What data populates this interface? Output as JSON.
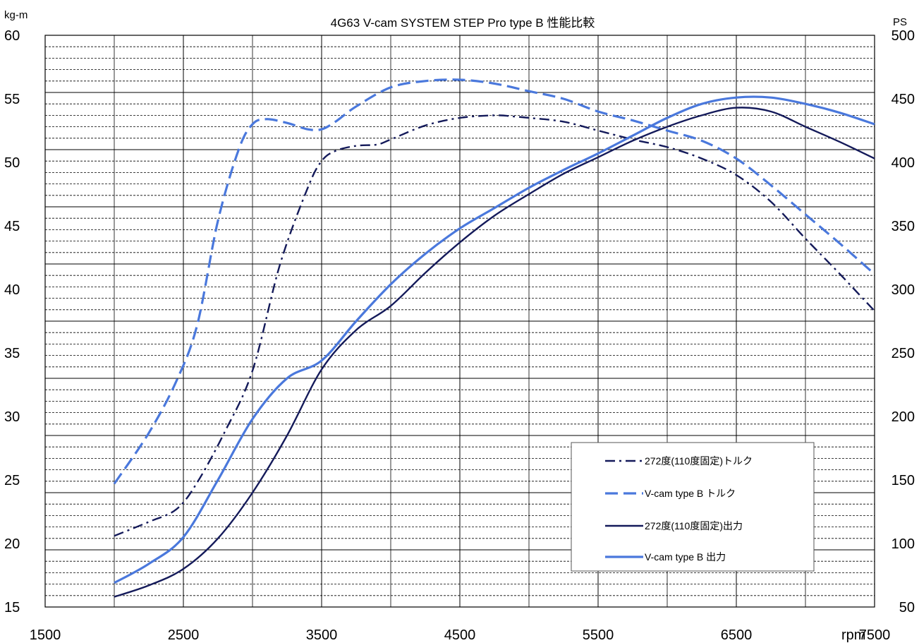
{
  "chart_data": {
    "type": "line",
    "title": "4G63 V-cam SYSTEM STEP Pro type B 性能比較",
    "xlabel": "rpm",
    "ylabel_left": "kg-m",
    "ylabel_right": "PS",
    "xlim": [
      1500,
      7500
    ],
    "ylim_left": [
      15,
      60
    ],
    "ylim_right": [
      50,
      500
    ],
    "x_tick_labels": [
      "1500",
      "2500",
      "3500",
      "4500",
      "5500",
      "6500",
      "7500"
    ],
    "y_left_tick_labels": [
      "15",
      "20",
      "25",
      "30",
      "35",
      "40",
      "45",
      "50",
      "55",
      "60"
    ],
    "y_right_tick_labels": [
      "50",
      "100",
      "150",
      "200",
      "250",
      "300",
      "350",
      "400",
      "450",
      "500"
    ],
    "grid": true,
    "legend_position": "bottom-right",
    "series": [
      {
        "name": "272度(110度固定)トルク",
        "axis": "left",
        "color": "#141a5a",
        "style": "dashdot",
        "x": [
          2000,
          2250,
          2450,
          2600,
          2800,
          3000,
          3200,
          3400,
          3500,
          3600,
          3750,
          3900,
          4000,
          4250,
          4500,
          4750,
          4900,
          5000,
          5250,
          5500,
          5750,
          6000,
          6250,
          6500,
          6750,
          7000,
          7250,
          7500
        ],
        "y": [
          20.6,
          21.7,
          22.7,
          24.8,
          28.8,
          33.6,
          42.0,
          48.0,
          50.1,
          50.9,
          51.3,
          51.4,
          51.8,
          52.9,
          53.5,
          53.7,
          53.6,
          53.5,
          53.2,
          52.5,
          51.8,
          51.2,
          50.3,
          49.0,
          46.9,
          44.0,
          41.2,
          38.3
        ]
      },
      {
        "name": "V-cam type B トルク",
        "axis": "left",
        "color": "#4a78dc",
        "style": "dashed",
        "x": [
          2000,
          2250,
          2450,
          2600,
          2750,
          2900,
          3000,
          3100,
          3250,
          3400,
          3500,
          3600,
          3750,
          4000,
          4250,
          4500,
          4750,
          5000,
          5250,
          5500,
          5750,
          6000,
          6250,
          6500,
          6750,
          7000,
          7250,
          7500
        ],
        "y": [
          24.7,
          28.7,
          32.8,
          37.2,
          45.4,
          51.0,
          53.0,
          53.4,
          53.1,
          52.6,
          52.6,
          53.2,
          54.4,
          55.9,
          56.4,
          56.5,
          56.2,
          55.6,
          55.0,
          54.0,
          53.3,
          52.5,
          51.7,
          50.3,
          48.2,
          45.9,
          43.6,
          41.2
        ]
      },
      {
        "name": "272度(110度固定)出力",
        "axis": "right",
        "color": "#141a5a",
        "style": "solid",
        "x": [
          2000,
          2250,
          2500,
          2750,
          3000,
          3250,
          3500,
          3750,
          4000,
          4250,
          4500,
          4750,
          5000,
          5250,
          5500,
          5750,
          6000,
          6250,
          6500,
          6750,
          7000,
          7250,
          7500
        ],
        "y": [
          58,
          67,
          80,
          104,
          140,
          185,
          237,
          268,
          287,
          313,
          337,
          358,
          375,
          391,
          404,
          417,
          428,
          437,
          443,
          440,
          428,
          416,
          403
        ]
      },
      {
        "name": "V-cam type B 出力",
        "axis": "right",
        "color": "#4a78dc",
        "style": "solid",
        "x": [
          2000,
          2250,
          2500,
          2750,
          3000,
          3250,
          3500,
          3750,
          4000,
          4250,
          4500,
          4750,
          5000,
          5250,
          5500,
          5750,
          6000,
          6250,
          6500,
          6750,
          7000,
          7250,
          7500
        ],
        "y": [
          69,
          84,
          105,
          150,
          198,
          230,
          244,
          275,
          304,
          328,
          348,
          364,
          380,
          394,
          407,
          421,
          435,
          446,
          451,
          451,
          446,
          439,
          430
        ]
      }
    ]
  }
}
